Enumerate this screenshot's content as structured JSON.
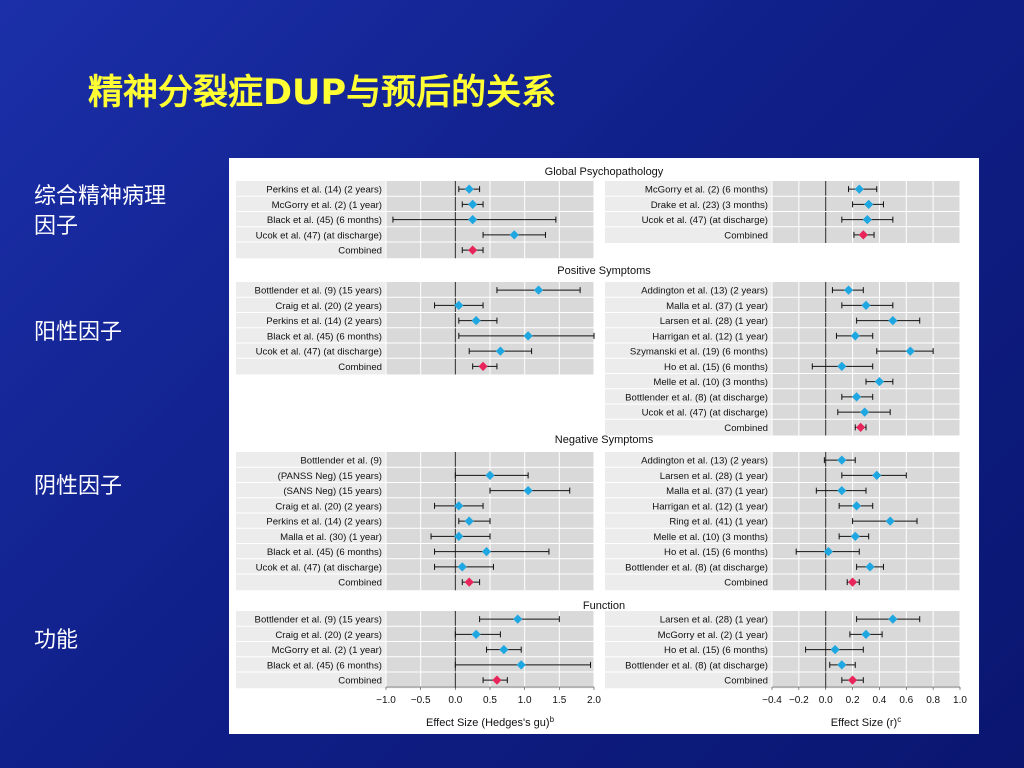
{
  "slide": {
    "title": "精神分裂症DUP与预后的关系",
    "side_labels": [
      "综合精神病理\n因子",
      "阳性因子",
      "阴性因子",
      "功能"
    ]
  },
  "colors": {
    "background": "#10208a",
    "title": "#ffff33",
    "side_label": "#ffffff",
    "study_marker": "#1ea7e1",
    "combined_marker": "#e8255a",
    "panel_fill": "#d9d9d9",
    "label_fill": "#ececec"
  },
  "chart_data": {
    "type": "forest",
    "left_axis": {
      "label": "Effect Size (Hedges's gu)",
      "label_sup": "b",
      "xlim": [
        -1.0,
        2.0
      ],
      "ticks": [
        "−1.0",
        "−0.5",
        "0.0",
        "0.5",
        "1.0",
        "1.5",
        "2.0"
      ],
      "tick_values": [
        -1.0,
        -0.5,
        0.0,
        0.5,
        1.0,
        1.5,
        2.0
      ],
      "grid": true
    },
    "right_axis": {
      "label": "Effect Size (r)",
      "label_sup": "c",
      "xlim": [
        -0.4,
        1.0
      ],
      "ticks": [
        "−0.4",
        "−0.2",
        "0.0",
        "0.2",
        "0.4",
        "0.6",
        "0.8",
        "1.0"
      ],
      "tick_values": [
        -0.4,
        -0.2,
        0.0,
        0.2,
        0.4,
        0.6,
        0.8,
        1.0
      ],
      "grid": true
    },
    "sections": [
      {
        "title": "Global Psychopathology",
        "left": [
          {
            "label": "Perkins et al. (14) (2 years)",
            "est": 0.2,
            "lo": 0.05,
            "hi": 0.35
          },
          {
            "label": "McGorry et al. (2) (1 year)",
            "est": 0.25,
            "lo": 0.1,
            "hi": 0.4
          },
          {
            "label": "Black et al. (45) (6 months)",
            "est": 0.25,
            "lo": -0.9,
            "hi": 1.45
          },
          {
            "label": "Ucok et al. (47) (at discharge)",
            "est": 0.85,
            "lo": 0.4,
            "hi": 1.3
          },
          {
            "label": "Combined",
            "est": 0.25,
            "lo": 0.1,
            "hi": 0.4,
            "combined": true
          }
        ],
        "right": [
          {
            "label": "McGorry et al. (2) (6 months)",
            "est": 0.25,
            "lo": 0.17,
            "hi": 0.38
          },
          {
            "label": "Drake et al. (23) (3 months)",
            "est": 0.32,
            "lo": 0.2,
            "hi": 0.43
          },
          {
            "label": "Ucok et al. (47) (at discharge)",
            "est": 0.31,
            "lo": 0.12,
            "hi": 0.5
          },
          {
            "label": "Combined",
            "est": 0.28,
            "lo": 0.21,
            "hi": 0.36,
            "combined": true
          }
        ]
      },
      {
        "title": "Positive Symptoms",
        "left": [
          {
            "label": "Bottlender et al. (9) (15 years)",
            "est": 1.2,
            "lo": 0.6,
            "hi": 1.8
          },
          {
            "label": "Craig et al. (20) (2 years)",
            "est": 0.05,
            "lo": -0.3,
            "hi": 0.4
          },
          {
            "label": "Perkins et al. (14) (2 years)",
            "est": 0.3,
            "lo": 0.05,
            "hi": 0.6
          },
          {
            "label": "Black et al. (45) (6 months)",
            "est": 1.05,
            "lo": 0.05,
            "hi": 2.0
          },
          {
            "label": "Ucok et al. (47) (at discharge)",
            "est": 0.65,
            "lo": 0.2,
            "hi": 1.1
          },
          {
            "label": "Combined",
            "est": 0.4,
            "lo": 0.25,
            "hi": 0.6,
            "combined": true
          }
        ],
        "right": [
          {
            "label": "Addington et al. (13) (2 years)",
            "est": 0.17,
            "lo": 0.05,
            "hi": 0.28
          },
          {
            "label": "Malla et al. (37) (1 year)",
            "est": 0.3,
            "lo": 0.12,
            "hi": 0.5
          },
          {
            "label": "Larsen et al. (28) (1 year)",
            "est": 0.5,
            "lo": 0.23,
            "hi": 0.7
          },
          {
            "label": "Harrigan et al. (12) (1 year)",
            "est": 0.22,
            "lo": 0.08,
            "hi": 0.35
          },
          {
            "label": "Szymanski et al. (19) (6 months)",
            "est": 0.63,
            "lo": 0.38,
            "hi": 0.8
          },
          {
            "label": "Ho et al. (15) (6 months)",
            "est": 0.12,
            "lo": -0.1,
            "hi": 0.35
          },
          {
            "label": "Melle et al. (10) (3 months)",
            "est": 0.4,
            "lo": 0.3,
            "hi": 0.5
          },
          {
            "label": "Bottlender et al. (8) (at discharge)",
            "est": 0.23,
            "lo": 0.12,
            "hi": 0.35
          },
          {
            "label": "Ucok et al. (47) (at discharge)",
            "est": 0.29,
            "lo": 0.09,
            "hi": 0.48
          },
          {
            "label": "Combined",
            "est": 0.26,
            "lo": 0.22,
            "hi": 0.3,
            "combined": true
          }
        ]
      },
      {
        "title": "Negative Symptoms",
        "left": [
          {
            "label": "Bottlender et al. (9)"
          },
          {
            "label": "(PANSS Neg) (15 years)",
            "est": 0.5,
            "lo": 0.0,
            "hi": 1.05
          },
          {
            "label": "(SANS Neg) (15 years)",
            "est": 1.05,
            "lo": 0.5,
            "hi": 1.65
          },
          {
            "label": "Craig et al. (20) (2 years)",
            "est": 0.05,
            "lo": -0.3,
            "hi": 0.4
          },
          {
            "label": "Perkins et al. (14) (2 years)",
            "est": 0.2,
            "lo": 0.05,
            "hi": 0.5
          },
          {
            "label": "Malla et al. (30) (1 year)",
            "est": 0.05,
            "lo": -0.35,
            "hi": 0.5
          },
          {
            "label": "Black et al. (45) (6 months)",
            "est": 0.45,
            "lo": -0.3,
            "hi": 1.35
          },
          {
            "label": "Ucok et al. (47) (at discharge)",
            "est": 0.1,
            "lo": -0.3,
            "hi": 0.55
          },
          {
            "label": "Combined",
            "est": 0.2,
            "lo": 0.1,
            "hi": 0.35,
            "combined": true
          }
        ],
        "right": [
          {
            "label": "Addington et al. (13) (2 years)",
            "est": 0.12,
            "lo": -0.01,
            "hi": 0.22
          },
          {
            "label": "Larsen et al. (28) (1 year)",
            "est": 0.38,
            "lo": 0.12,
            "hi": 0.6
          },
          {
            "label": "Malla et al. (37) (1 year)",
            "est": 0.12,
            "lo": -0.07,
            "hi": 0.3
          },
          {
            "label": "Harrigan et al. (12) (1 year)",
            "est": 0.23,
            "lo": 0.1,
            "hi": 0.35
          },
          {
            "label": "Ring et al. (41) (1 year)",
            "est": 0.48,
            "lo": 0.2,
            "hi": 0.68
          },
          {
            "label": "Melle et al. (10) (3 months)",
            "est": 0.22,
            "lo": 0.1,
            "hi": 0.32
          },
          {
            "label": "Ho et al. (15) (6 months)",
            "est": 0.02,
            "lo": -0.22,
            "hi": 0.25
          },
          {
            "label": "Bottlender et al. (8) (at discharge)",
            "est": 0.33,
            "lo": 0.23,
            "hi": 0.43
          },
          {
            "label": "Combined",
            "est": 0.2,
            "lo": 0.16,
            "hi": 0.25,
            "combined": true
          }
        ]
      },
      {
        "title": "Function",
        "left": [
          {
            "label": "Bottlender et al. (9) (15 years)",
            "est": 0.9,
            "lo": 0.35,
            "hi": 1.5
          },
          {
            "label": "Craig et al. (20) (2 years)",
            "est": 0.3,
            "lo": 0.0,
            "hi": 0.65
          },
          {
            "label": "McGorry et al. (2) (1 year)",
            "est": 0.7,
            "lo": 0.45,
            "hi": 0.95
          },
          {
            "label": "Black et al. (45) (6 months)",
            "est": 0.95,
            "lo": 0.0,
            "hi": 1.95
          },
          {
            "label": "Combined",
            "est": 0.6,
            "lo": 0.4,
            "hi": 0.75,
            "combined": true
          }
        ],
        "right": [
          {
            "label": "Larsen et al. (28) (1 year)",
            "est": 0.5,
            "lo": 0.23,
            "hi": 0.7
          },
          {
            "label": "McGorry et al. (2) (1 year)",
            "est": 0.3,
            "lo": 0.18,
            "hi": 0.42
          },
          {
            "label": "Ho et al. (15) (6 months)",
            "est": 0.07,
            "lo": -0.15,
            "hi": 0.28
          },
          {
            "label": "Bottlender et al. (8) (at discharge)",
            "est": 0.12,
            "lo": 0.03,
            "hi": 0.22
          },
          {
            "label": "Combined",
            "est": 0.2,
            "lo": 0.12,
            "hi": 0.28,
            "combined": true
          }
        ]
      }
    ]
  }
}
